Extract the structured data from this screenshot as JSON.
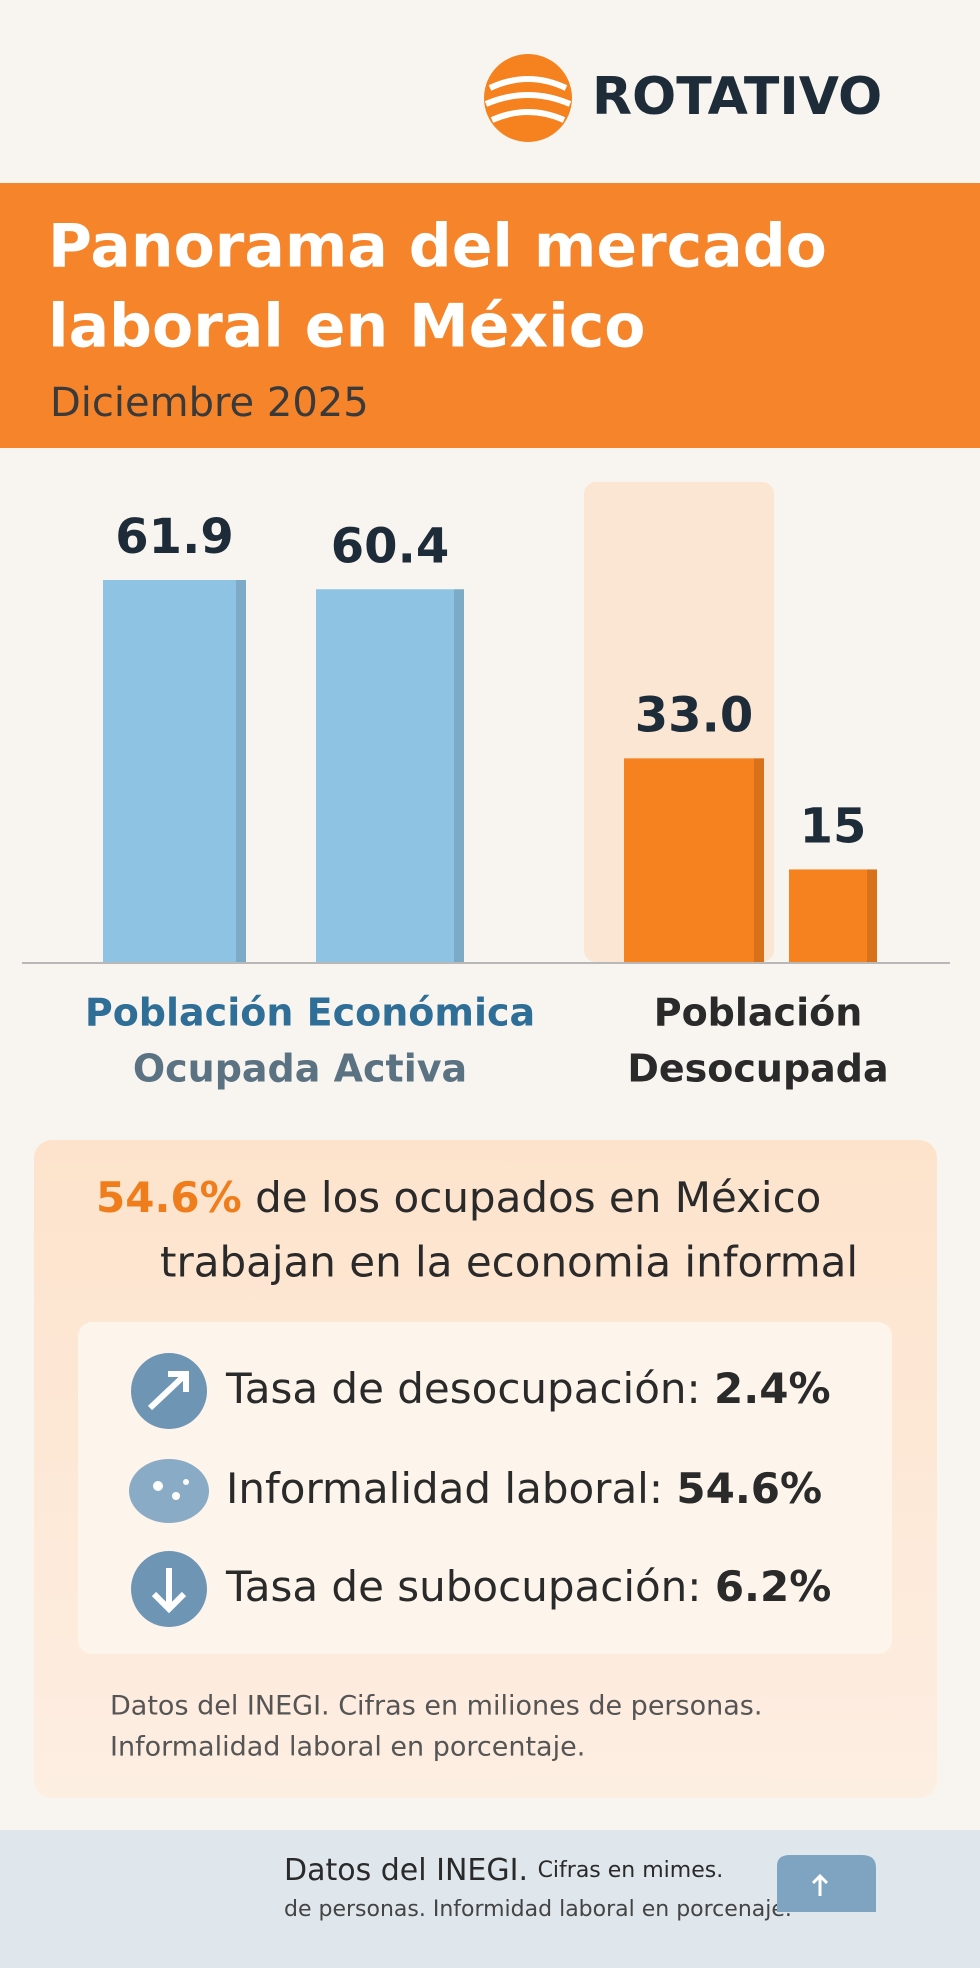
{
  "logo": "ROTATIVO",
  "header": {
    "title_lines": [
      "Panorama del mercado",
      "laboral en México"
    ],
    "subtitle": "Diciembre 2025"
  },
  "chart_data": {
    "type": "bar",
    "categories": [
      null,
      null,
      null,
      null
    ],
    "values": [
      61.9,
      60.4,
      33.0,
      15
    ],
    "value_labels": [
      "61.9",
      "60.4",
      "33.0",
      "15"
    ],
    "colors": [
      "#8fc3e3",
      "#8fc3e3",
      "#f5821f",
      "#f5821f"
    ],
    "group_labels": [
      [
        "Población Económica",
        "Ocupada Activa"
      ],
      [
        "Población",
        "Desocupada"
      ]
    ]
  },
  "highlight": {
    "figure": "54.6%",
    "text_lines": [
      "de los ocupados en México",
      "trabajan en la economia informal"
    ]
  },
  "stats": [
    {
      "label": "Tasa de desocupación:",
      "value": "2.4%"
    },
    {
      "label": "Informalidad laboral:",
      "value": "54.6%"
    },
    {
      "label": "Tasa de subocupación:",
      "value": "6.2%"
    }
  ],
  "note_lines": [
    "Datos del INEGI. Cifras en miliones de personas.",
    "Informalidad laboral en porcentaje."
  ],
  "footer": {
    "lead": "Datos del INEGI.",
    "rest": "Cifras en mimes.",
    "line2": "de personas. Informidad laboral en porcenaje."
  }
}
